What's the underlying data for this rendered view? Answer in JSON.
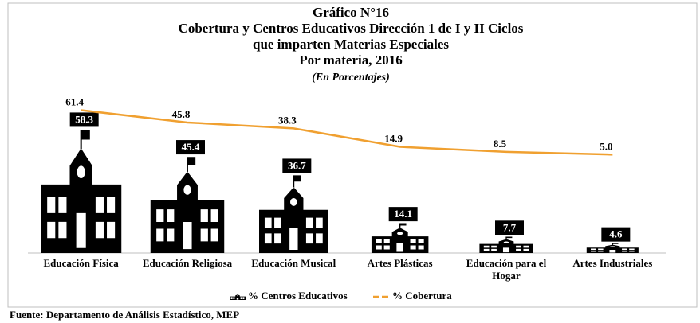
{
  "chart_data": {
    "type": "pictograph-line",
    "title": "Gráfico N°16",
    "title_lines": [
      "Cobertura y Centros Educativos Dirección 1 de I y II Ciclos",
      "que imparten Materias Especiales",
      "Por materia, 2016"
    ],
    "subtitle": "(En Porcentajes)",
    "categories": [
      "Educación Física",
      "Educación Religiosa",
      "Educación Musical",
      "Artes Plásticas",
      "Educación para el Hogar",
      "Artes Industriales"
    ],
    "series": [
      {
        "name": "% Centros Educativos",
        "color": "#000000",
        "values": [
          58.3,
          45.4,
          36.7,
          14.1,
          7.7,
          4.6
        ]
      },
      {
        "name": "% Cobertura",
        "color": "#f0a030",
        "axis": "y2",
        "values": [
          61.4,
          45.8,
          38.3,
          14.9,
          8.5,
          5.0
        ],
        "value_labels": [
          "61.4",
          "45.8",
          "38.3",
          "14.9",
          "8.5",
          "5.0"
        ]
      }
    ],
    "ylim": [
      0,
      70
    ],
    "y2lim": [
      -120,
      70
    ],
    "source": "Fuente: Departamento de Análisis Estadístico, MEP"
  }
}
